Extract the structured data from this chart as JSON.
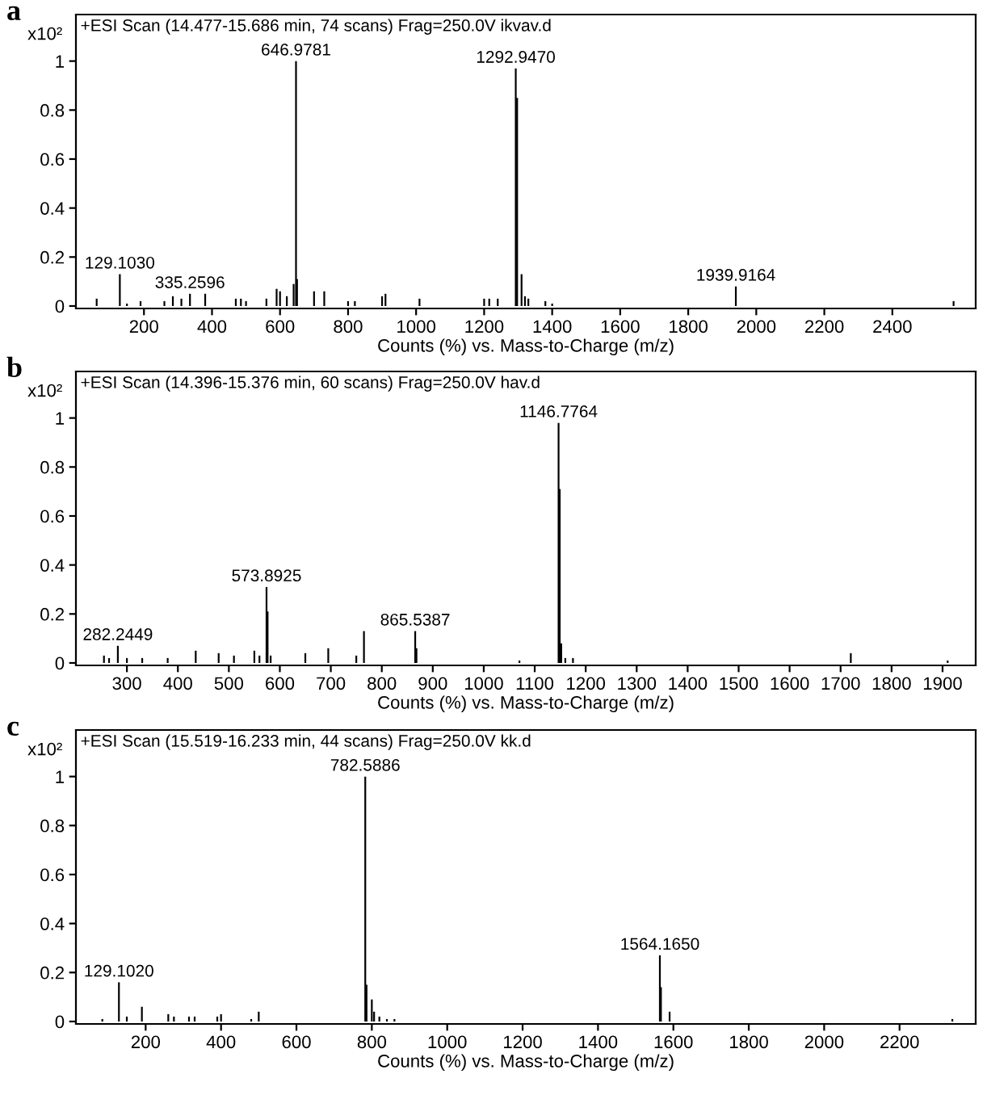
{
  "chart_data": [
    {
      "type": "bar",
      "title": "a",
      "xlabel": "Counts (%) vs. Mass-to-Charge (m/z)",
      "ylabel": "x10²",
      "color": "#000000",
      "grid": false,
      "xlim": [
        0,
        2645
      ],
      "ylim": [
        -0.01,
        1.19
      ],
      "xticks": [
        200,
        400,
        600,
        800,
        1000,
        1200,
        1400,
        1600,
        1800,
        2000,
        2200,
        2400
      ],
      "yticks": [
        0,
        0.2,
        0.4,
        0.6,
        0.8,
        1
      ],
      "x": [
        61,
        129.103,
        150,
        190,
        260,
        285,
        310,
        335.2596,
        380,
        470,
        485,
        500,
        560,
        590,
        600,
        620,
        640,
        646.9781,
        650,
        700,
        730,
        800,
        820,
        900,
        910,
        1010,
        1200,
        1215,
        1240,
        1292.947,
        1297,
        1310,
        1320,
        1330,
        1380,
        1400,
        1939.9164,
        2580
      ],
      "values": [
        0.03,
        0.13,
        0.01,
        0.02,
        0.02,
        0.04,
        0.03,
        0.05,
        0.05,
        0.03,
        0.03,
        0.02,
        0.03,
        0.07,
        0.06,
        0.04,
        0.09,
        1.0,
        0.11,
        0.06,
        0.06,
        0.02,
        0.02,
        0.04,
        0.05,
        0.03,
        0.03,
        0.03,
        0.03,
        0.97,
        0.85,
        0.13,
        0.04,
        0.03,
        0.02,
        0.01,
        0.08,
        0.02
      ],
      "annotations": [
        "+ESI Scan (14.477-15.686 min, 74 scans) Frag=250.0V ikvav.d",
        {
          "text": "129.1030",
          "x": 129.103,
          "y": 0.13
        },
        {
          "text": "335.2596",
          "x": 335.2596,
          "y": 0.05
        },
        {
          "text": "646.9781",
          "x": 646.9781,
          "y": 1.0
        },
        {
          "text": "1292.9470",
          "x": 1292.947,
          "y": 0.97
        },
        {
          "text": "1939.9164",
          "x": 1939.9164,
          "y": 0.08
        }
      ]
    },
    {
      "type": "bar",
      "title": "b",
      "xlabel": "Counts (%) vs. Mass-to-Charge (m/z)",
      "ylabel": "x10²",
      "color": "#000000",
      "grid": false,
      "xlim": [
        200,
        1965
      ],
      "ylim": [
        -0.01,
        1.19
      ],
      "xticks": [
        300,
        400,
        500,
        600,
        700,
        800,
        900,
        1000,
        1100,
        1200,
        1300,
        1400,
        1500,
        1600,
        1700,
        1800,
        1900
      ],
      "yticks": [
        0,
        0.2,
        0.4,
        0.6,
        0.8,
        1
      ],
      "x": [
        255,
        265,
        282.2449,
        300,
        330,
        380,
        435,
        480,
        510,
        550,
        560,
        573.8925,
        576,
        582,
        650,
        695,
        750,
        765,
        865.5387,
        868,
        1070,
        1146.7764,
        1149,
        1152,
        1160,
        1175,
        1720,
        1910
      ],
      "values": [
        0.03,
        0.02,
        0.07,
        0.02,
        0.02,
        0.02,
        0.05,
        0.04,
        0.03,
        0.05,
        0.03,
        0.31,
        0.21,
        0.03,
        0.04,
        0.06,
        0.03,
        0.13,
        0.13,
        0.06,
        0.01,
        0.98,
        0.71,
        0.08,
        0.02,
        0.02,
        0.04,
        0.01
      ],
      "annotations": [
        "+ESI Scan (14.396-15.376 min, 60 scans) Frag=250.0V hav.d",
        {
          "text": "282.2449",
          "x": 282.2449,
          "y": 0.07
        },
        {
          "text": "573.8925",
          "x": 573.8925,
          "y": 0.31
        },
        {
          "text": "865.5387",
          "x": 865.5387,
          "y": 0.13
        },
        {
          "text": "1146.7764",
          "x": 1146.7764,
          "y": 0.98
        }
      ]
    },
    {
      "type": "bar",
      "title": "c",
      "xlabel": "Counts (%) vs. Mass-to-Charge (m/z)",
      "ylabel": "x10²",
      "color": "#000000",
      "grid": false,
      "xlim": [
        15,
        2402
      ],
      "ylim": [
        -0.01,
        1.19
      ],
      "xticks": [
        200,
        400,
        600,
        800,
        1000,
        1200,
        1400,
        1600,
        1800,
        2000,
        2200
      ],
      "yticks": [
        0,
        0.2,
        0.4,
        0.6,
        0.8,
        1
      ],
      "x": [
        85,
        129.102,
        150,
        190,
        260,
        275,
        315,
        330,
        390,
        400,
        480,
        500,
        782.5886,
        786,
        800,
        806,
        820,
        840,
        860,
        1564.165,
        1567,
        1590,
        2340
      ],
      "values": [
        0.01,
        0.16,
        0.02,
        0.06,
        0.03,
        0.02,
        0.02,
        0.02,
        0.02,
        0.03,
        0.01,
        0.04,
        1.0,
        0.15,
        0.09,
        0.04,
        0.02,
        0.01,
        0.01,
        0.27,
        0.14,
        0.04,
        0.01
      ],
      "annotations": [
        "+ESI Scan (15.519-16.233 min, 44 scans) Frag=250.0V kk.d",
        {
          "text": "129.1020",
          "x": 129.102,
          "y": 0.16
        },
        {
          "text": "782.5886",
          "x": 782.5886,
          "y": 1.0
        },
        {
          "text": "1564.1650",
          "x": 1564.165,
          "y": 0.27
        }
      ]
    }
  ]
}
